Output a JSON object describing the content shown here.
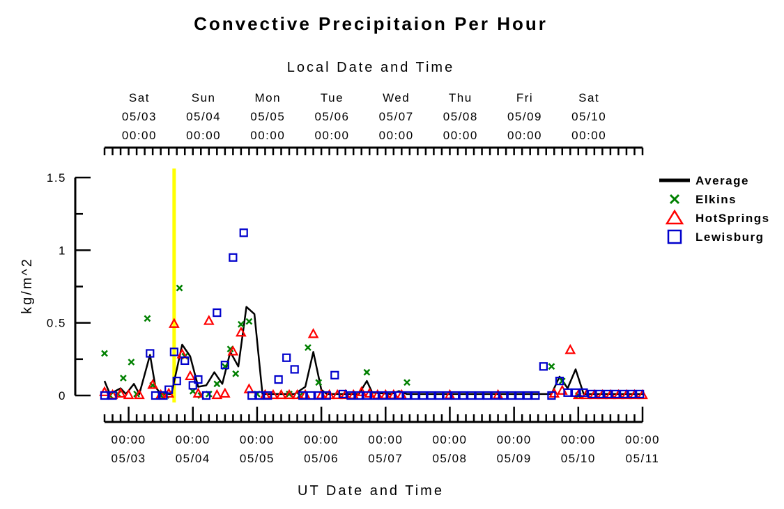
{
  "chart_data": {
    "type": "line",
    "title": "Convective Precipitaion Per Hour",
    "top_axis_title": "Local Date and Time",
    "xlabel": "UT Date and Time",
    "ylabel": "kg/m^2",
    "ylim": [
      0,
      1.5
    ],
    "yticks": [
      "0",
      "0.5",
      "1",
      "1.5"
    ],
    "local_ticks": [
      {
        "day": "Sat",
        "date": "05/03",
        "time": "00:00"
      },
      {
        "day": "Sun",
        "date": "05/04",
        "time": "00:00"
      },
      {
        "day": "Mon",
        "date": "05/05",
        "time": "00:00"
      },
      {
        "day": "Tue",
        "date": "05/06",
        "time": "00:00"
      },
      {
        "day": "Wed",
        "date": "05/07",
        "time": "00:00"
      },
      {
        "day": "Thu",
        "date": "05/08",
        "time": "00:00"
      },
      {
        "day": "Fri",
        "date": "05/09",
        "time": "00:00"
      },
      {
        "day": "Sat",
        "date": "05/10",
        "time": "00:00"
      }
    ],
    "ut_ticks": [
      {
        "time": "00:00",
        "date": "05/03"
      },
      {
        "time": "00:00",
        "date": "05/04"
      },
      {
        "time": "00:00",
        "date": "05/05"
      },
      {
        "time": "00:00",
        "date": "05/06"
      },
      {
        "time": "00:00",
        "date": "05/07"
      },
      {
        "time": "00:00",
        "date": "05/08"
      },
      {
        "time": "00:00",
        "date": "05/09"
      },
      {
        "time": "00:00",
        "date": "05/10"
      },
      {
        "time": "00:00",
        "date": "05/11"
      }
    ],
    "xlim_hours_from_05_03_00UT": [
      -9,
      192
    ],
    "local_offset_hours": -4,
    "tick_interval_hours": 3,
    "current_time_marker_hours": 17,
    "marker_color": "#ffff00",
    "legend_position": "right",
    "series": [
      {
        "name": "Average",
        "style": "line",
        "color": "#000000",
        "points": [
          [
            -9,
            0.1
          ],
          [
            -7,
            0.01
          ],
          [
            -3,
            0.05
          ],
          [
            -1,
            0.01
          ],
          [
            2,
            0.08
          ],
          [
            4,
            0.01
          ],
          [
            8,
            0.28
          ],
          [
            10,
            0.06
          ],
          [
            12,
            0.01
          ],
          [
            16,
            0.01
          ],
          [
            20,
            0.35
          ],
          [
            23,
            0.27
          ],
          [
            26,
            0.06
          ],
          [
            29,
            0.07
          ],
          [
            32,
            0.16
          ],
          [
            35,
            0.08
          ],
          [
            38,
            0.3
          ],
          [
            41,
            0.2
          ],
          [
            44,
            0.61
          ],
          [
            47,
            0.56
          ],
          [
            50,
            0.01
          ],
          [
            62,
            0.01
          ],
          [
            66,
            0.06
          ],
          [
            69,
            0.3
          ],
          [
            72,
            0.04
          ],
          [
            74,
            0.01
          ],
          [
            86,
            0.01
          ],
          [
            89,
            0.1
          ],
          [
            91,
            0.02
          ],
          [
            98,
            0.01
          ],
          [
            101,
            0.03
          ],
          [
            104,
            0.01
          ],
          [
            158,
            0.01
          ],
          [
            161,
            0.13
          ],
          [
            164,
            0.05
          ],
          [
            167,
            0.18
          ],
          [
            170,
            0.01
          ],
          [
            192,
            0.01
          ]
        ]
      },
      {
        "name": "Elkins",
        "style": "x-marker",
        "color": "#008000",
        "points": [
          [
            -9,
            0.29
          ],
          [
            -7,
            0.0
          ],
          [
            -4,
            0.01
          ],
          [
            -2,
            0.12
          ],
          [
            1,
            0.23
          ],
          [
            3,
            0.01
          ],
          [
            7,
            0.53
          ],
          [
            9,
            0.07
          ],
          [
            12,
            0.0
          ],
          [
            14,
            0.0
          ],
          [
            19,
            0.74
          ],
          [
            21,
            0.27
          ],
          [
            24,
            0.03
          ],
          [
            27,
            0.0
          ],
          [
            30,
            0.01
          ],
          [
            33,
            0.08
          ],
          [
            36,
            0.2
          ],
          [
            38,
            0.32
          ],
          [
            40,
            0.15
          ],
          [
            42,
            0.49
          ],
          [
            45,
            0.51
          ],
          [
            48,
            0.01
          ],
          [
            60,
            0.01
          ],
          [
            64,
            0.0
          ],
          [
            67,
            0.33
          ],
          [
            71,
            0.09
          ],
          [
            89,
            0.16
          ],
          [
            104,
            0.09
          ],
          [
            158,
            0.2
          ],
          [
            162,
            0.1
          ],
          [
            168,
            0.0
          ]
        ]
      },
      {
        "name": "HotSprings",
        "style": "triangle-marker",
        "color": "#ff0000",
        "points": [
          [
            -9,
            0.02
          ],
          [
            -6,
            0.0
          ],
          [
            -3,
            0.01
          ],
          [
            0,
            0.0
          ],
          [
            4,
            0.0
          ],
          [
            9,
            0.07
          ],
          [
            12,
            0.0
          ],
          [
            15,
            0.01
          ],
          [
            17,
            0.49
          ],
          [
            20,
            0.28
          ],
          [
            23,
            0.13
          ],
          [
            26,
            0.01
          ],
          [
            30,
            0.51
          ],
          [
            33,
            0.0
          ],
          [
            36,
            0.01
          ],
          [
            39,
            0.3
          ],
          [
            42,
            0.43
          ],
          [
            45,
            0.04
          ],
          [
            51,
            0.0
          ],
          [
            54,
            0.0
          ],
          [
            57,
            0.0
          ],
          [
            60,
            0.0
          ],
          [
            63,
            0.0
          ],
          [
            66,
            0.0
          ],
          [
            69,
            0.42
          ],
          [
            72,
            0.0
          ],
          [
            75,
            0.0
          ],
          [
            78,
            0.0
          ],
          [
            81,
            0.0
          ],
          [
            84,
            0.0
          ],
          [
            87,
            0.02
          ],
          [
            90,
            0.01
          ],
          [
            93,
            0.0
          ],
          [
            96,
            0.0
          ],
          [
            99,
            0.0
          ],
          [
            102,
            0.0
          ],
          [
            120,
            0.0
          ],
          [
            138,
            0.0
          ],
          [
            159,
            0.01
          ],
          [
            162,
            0.03
          ],
          [
            165,
            0.31
          ],
          [
            168,
            0.0
          ],
          [
            171,
            0.0
          ],
          [
            174,
            0.0
          ],
          [
            177,
            0.0
          ],
          [
            180,
            0.0
          ],
          [
            183,
            0.0
          ],
          [
            186,
            0.0
          ],
          [
            189,
            0.0
          ],
          [
            192,
            0.0
          ]
        ]
      },
      {
        "name": "Lewisburg",
        "style": "square-marker",
        "color": "#0000cc",
        "points": [
          [
            -9,
            0.0
          ],
          [
            -6,
            0.0
          ],
          [
            8,
            0.29
          ],
          [
            10,
            0.0
          ],
          [
            13,
            0.0
          ],
          [
            15,
            0.04
          ],
          [
            17,
            0.3
          ],
          [
            18,
            0.1
          ],
          [
            21,
            0.24
          ],
          [
            24,
            0.07
          ],
          [
            26,
            0.11
          ],
          [
            29,
            0.0
          ],
          [
            33,
            0.57
          ],
          [
            36,
            0.21
          ],
          [
            39,
            0.95
          ],
          [
            43,
            1.12
          ],
          [
            46,
            0.0
          ],
          [
            49,
            0.0
          ],
          [
            52,
            0.0
          ],
          [
            56,
            0.11
          ],
          [
            59,
            0.26
          ],
          [
            62,
            0.18
          ],
          [
            65,
            0.0
          ],
          [
            68,
            0.0
          ],
          [
            71,
            0.0
          ],
          [
            74,
            0.0
          ],
          [
            77,
            0.14
          ],
          [
            80,
            0.01
          ],
          [
            83,
            0.0
          ],
          [
            86,
            0.0
          ],
          [
            89,
            0.0
          ],
          [
            92,
            0.0
          ],
          [
            95,
            0.0
          ],
          [
            98,
            0.0
          ],
          [
            101,
            0.0
          ],
          [
            104,
            0.0
          ],
          [
            107,
            0.0
          ],
          [
            110,
            0.0
          ],
          [
            113,
            0.0
          ],
          [
            116,
            0.0
          ],
          [
            119,
            0.0
          ],
          [
            122,
            0.0
          ],
          [
            125,
            0.0
          ],
          [
            128,
            0.0
          ],
          [
            131,
            0.0
          ],
          [
            134,
            0.0
          ],
          [
            137,
            0.0
          ],
          [
            140,
            0.0
          ],
          [
            143,
            0.0
          ],
          [
            146,
            0.0
          ],
          [
            149,
            0.0
          ],
          [
            152,
            0.0
          ],
          [
            155,
            0.2
          ],
          [
            158,
            0.0
          ],
          [
            161,
            0.1
          ],
          [
            164,
            0.02
          ],
          [
            167,
            0.02
          ],
          [
            170,
            0.02
          ],
          [
            173,
            0.01
          ],
          [
            176,
            0.01
          ],
          [
            179,
            0.01
          ],
          [
            182,
            0.01
          ],
          [
            185,
            0.01
          ],
          [
            188,
            0.01
          ],
          [
            191,
            0.01
          ]
        ]
      }
    ]
  }
}
